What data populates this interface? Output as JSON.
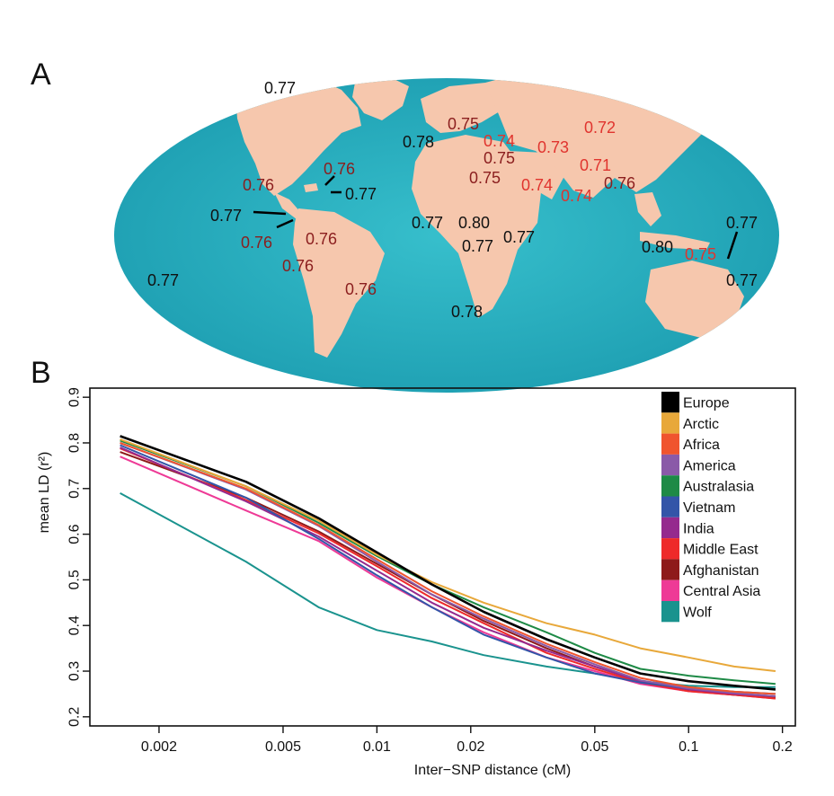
{
  "panels": {
    "a_letter": "A",
    "b_letter": "B"
  },
  "map": {
    "colors": {
      "ocean": "#2bb5c4",
      "ocean_dark": "#1d9fb3",
      "land": "#f6c7ad",
      "label_dark": "#111111",
      "label_brown": "#8b1e1e",
      "label_red": "#e0342e"
    },
    "labels": [
      {
        "text": "0.77",
        "color": "dark"
      },
      {
        "text": "0.77",
        "color": "dark"
      },
      {
        "text": "0.78",
        "color": "dark"
      },
      {
        "text": "0.74",
        "color": "red"
      },
      {
        "text": "0.75",
        "color": "brown"
      },
      {
        "text": "0.73",
        "color": "red"
      },
      {
        "text": "0.72",
        "color": "red"
      },
      {
        "text": "0.71",
        "color": "red"
      },
      {
        "text": "0.75",
        "color": "brown"
      },
      {
        "text": "0.75",
        "color": "brown"
      },
      {
        "text": "0.74",
        "color": "red"
      },
      {
        "text": "0.74",
        "color": "red"
      },
      {
        "text": "0.76",
        "color": "brown"
      },
      {
        "text": "0.76",
        "color": "brown"
      },
      {
        "text": "0.76",
        "color": "brown"
      },
      {
        "text": "0.77",
        "color": "dark"
      },
      {
        "text": "0.76",
        "color": "brown"
      },
      {
        "text": "0.76",
        "color": "brown"
      },
      {
        "text": "0.76",
        "color": "brown"
      },
      {
        "text": "0.76",
        "color": "brown"
      },
      {
        "text": "0.77",
        "color": "dark"
      },
      {
        "text": "0.77",
        "color": "dark"
      },
      {
        "text": "0.80",
        "color": "dark"
      },
      {
        "text": "0.77",
        "color": "dark"
      },
      {
        "text": "0.77",
        "color": "dark"
      },
      {
        "text": "0.78",
        "color": "dark"
      },
      {
        "text": "0.80",
        "color": "dark"
      },
      {
        "text": "0.75",
        "color": "red"
      },
      {
        "text": "0.77",
        "color": "dark"
      },
      {
        "text": "0.77",
        "color": "dark"
      }
    ]
  },
  "chart_data": {
    "type": "line",
    "title": "",
    "xlabel": "Inter−SNP distance (cM)",
    "ylabel": "mean LD (r²)",
    "xscale": "log",
    "xlim": [
      0.0012,
      0.22
    ],
    "ylim": [
      0.18,
      0.92
    ],
    "xticks": [
      {
        "value": 0.002,
        "label": "0.002"
      },
      {
        "value": 0.005,
        "label": "0.005"
      },
      {
        "value": 0.01,
        "label": "0.01"
      },
      {
        "value": 0.02,
        "label": "0.02"
      },
      {
        "value": 0.05,
        "label": "0.05"
      },
      {
        "value": 0.1,
        "label": "0.1"
      },
      {
        "value": 0.2,
        "label": "0.2"
      }
    ],
    "yticks": [
      {
        "value": 0.2,
        "label": "0.2"
      },
      {
        "value": 0.3,
        "label": "0.3"
      },
      {
        "value": 0.4,
        "label": "0.4"
      },
      {
        "value": 0.5,
        "label": "0.5"
      },
      {
        "value": 0.6,
        "label": "0.6"
      },
      {
        "value": 0.7,
        "label": "0.7"
      },
      {
        "value": 0.8,
        "label": "0.8"
      },
      {
        "value": 0.9,
        "label": "0.9"
      }
    ],
    "grid": false,
    "legend_position": "top-right",
    "x": [
      0.0015,
      0.0038,
      0.0065,
      0.01,
      0.015,
      0.022,
      0.035,
      0.05,
      0.07,
      0.1,
      0.14,
      0.19
    ],
    "series": [
      {
        "name": "Europe",
        "color": "#000000",
        "values": [
          0.815,
          0.715,
          0.635,
          0.56,
          0.49,
          0.43,
          0.37,
          0.33,
          0.295,
          0.278,
          0.268,
          0.26
        ]
      },
      {
        "name": "Arctic",
        "color": "#e8a83a",
        "values": [
          0.808,
          0.705,
          0.63,
          0.555,
          0.495,
          0.45,
          0.405,
          0.38,
          0.35,
          0.33,
          0.31,
          0.3
        ]
      },
      {
        "name": "Africa",
        "color": "#f0542e",
        "values": [
          0.8,
          0.7,
          0.62,
          0.545,
          0.475,
          0.42,
          0.36,
          0.32,
          0.285,
          0.265,
          0.255,
          0.25
        ]
      },
      {
        "name": "America",
        "color": "#8a5aa8",
        "values": [
          0.8,
          0.698,
          0.618,
          0.54,
          0.468,
          0.415,
          0.355,
          0.315,
          0.28,
          0.262,
          0.252,
          0.245
        ]
      },
      {
        "name": "Australasia",
        "color": "#1e8a46",
        "values": [
          0.805,
          0.705,
          0.625,
          0.552,
          0.49,
          0.44,
          0.385,
          0.34,
          0.305,
          0.29,
          0.28,
          0.272
        ]
      },
      {
        "name": "Vietnam",
        "color": "#3355a8",
        "values": [
          0.795,
          0.68,
          0.59,
          0.51,
          0.44,
          0.38,
          0.33,
          0.295,
          0.275,
          0.262,
          0.255,
          0.25
        ]
      },
      {
        "name": "India",
        "color": "#952a8e",
        "values": [
          0.79,
          0.672,
          0.595,
          0.52,
          0.45,
          0.395,
          0.345,
          0.31,
          0.278,
          0.26,
          0.25,
          0.245
        ]
      },
      {
        "name": "Middle East",
        "color": "#ee2a2a",
        "values": [
          0.788,
          0.675,
          0.602,
          0.53,
          0.46,
          0.405,
          0.34,
          0.305,
          0.275,
          0.256,
          0.248,
          0.24
        ]
      },
      {
        "name": "Afghanistan",
        "color": "#8e1a1a",
        "values": [
          0.78,
          0.68,
          0.606,
          0.535,
          0.468,
          0.41,
          0.35,
          0.31,
          0.278,
          0.258,
          0.248,
          0.243
        ]
      },
      {
        "name": "Central Asia",
        "color": "#ee3a96",
        "values": [
          0.77,
          0.652,
          0.585,
          0.505,
          0.44,
          0.385,
          0.33,
          0.3,
          0.272,
          0.256,
          0.248,
          0.24
        ]
      },
      {
        "name": "Wolf",
        "color": "#1a938e",
        "values": [
          0.69,
          0.54,
          0.44,
          0.39,
          0.365,
          0.335,
          0.31,
          0.295,
          0.278,
          0.268,
          0.265,
          0.265
        ]
      }
    ]
  }
}
